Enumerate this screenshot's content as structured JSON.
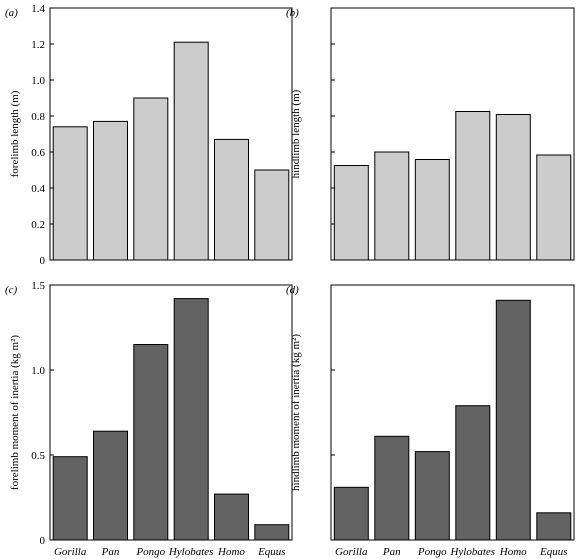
{
  "chart_data": [
    {
      "type": "bar",
      "panel": "(a)",
      "ylabel": "forelimb length (m)",
      "categories": [
        "Gorilla",
        "Pan",
        "Pongo",
        "Hylobates",
        "Homo",
        "Equus"
      ],
      "show_categories": false,
      "values": [
        0.74,
        0.77,
        0.9,
        1.21,
        0.67,
        0.5
      ],
      "ylim": [
        0,
        1.4
      ],
      "yticks": [
        0,
        0.2,
        0.4,
        0.6,
        0.8,
        1.0,
        1.2,
        1.4
      ],
      "ytick_labels": [
        "0",
        "0.2",
        "0.4",
        "0.6",
        "0.8",
        "1.0",
        "1.2",
        "1.4"
      ],
      "bar_color": "#cccccc",
      "grid": false
    },
    {
      "type": "bar",
      "panel": "(b)",
      "ylabel": "hindlimb length (m)",
      "categories": [
        "Gorilla",
        "Pan",
        "Pongo",
        "Hylobates",
        "Homo",
        "Equus"
      ],
      "show_categories": false,
      "values": [
        0.63,
        0.72,
        0.67,
        0.99,
        0.97,
        0.7
      ],
      "ylim": [
        0,
        1.68
      ],
      "yticks": [
        0,
        0.24,
        0.48,
        0.72,
        0.96,
        1.2,
        1.44,
        1.68
      ],
      "ytick_labels": [],
      "bar_color": "#cccccc",
      "grid": false
    },
    {
      "type": "bar",
      "panel": "(c)",
      "ylabel": "forelimb moment of inertia (kg m²)",
      "categories": [
        "Gorilla",
        "Pan",
        "Pongo",
        "Hylobates",
        "Homo",
        "Equus"
      ],
      "show_categories": true,
      "values": [
        0.49,
        0.64,
        1.15,
        1.42,
        0.27,
        0.09
      ],
      "ylim": [
        0,
        1.5
      ],
      "yticks": [
        0,
        0.5,
        1.0,
        1.5
      ],
      "ytick_labels": [
        "0",
        "0.5",
        "1.0",
        "1.5"
      ],
      "bar_color": "#636363",
      "grid": false
    },
    {
      "type": "bar",
      "panel": "(d)",
      "ylabel": "hindlimb moment of inertia (kg m²)",
      "categories": [
        "Gorilla",
        "Pan",
        "Pongo",
        "Hylobates",
        "Homo",
        "Equus"
      ],
      "show_categories": true,
      "values": [
        0.31,
        0.61,
        0.52,
        0.79,
        1.41,
        0.16
      ],
      "ylim": [
        0,
        1.5
      ],
      "yticks": [
        0,
        0.5,
        1.0,
        1.5
      ],
      "ytick_labels": [],
      "bar_color": "#636363",
      "grid": false
    }
  ]
}
